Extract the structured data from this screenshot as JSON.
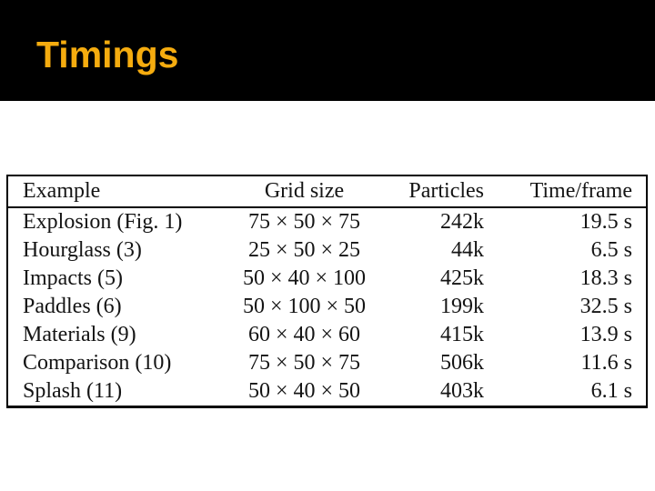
{
  "slide": {
    "title": "Timings"
  },
  "colors": {
    "title": "#F5AC0F",
    "header_bg": "#000000",
    "body_bg": "#FFFFFF",
    "table_border": "#000000",
    "table_text": "#141414"
  },
  "table": {
    "headers": [
      "Example",
      "Grid size",
      "Particles",
      "Time/frame"
    ],
    "rows": [
      [
        "Explosion (Fig. 1)",
        "75 × 50 × 75",
        "242k",
        "19.5 s"
      ],
      [
        "Hourglass (3)",
        "25 × 50 × 25",
        "44k",
        "6.5 s"
      ],
      [
        "Impacts (5)",
        "50 × 40 × 100",
        "425k",
        "18.3 s"
      ],
      [
        "Paddles (6)",
        "50 × 100 × 50",
        "199k",
        "32.5 s"
      ],
      [
        "Materials (9)",
        "60 × 40 × 60",
        "415k",
        "13.9 s"
      ],
      [
        "Comparison (10)",
        "75 × 50 × 75",
        "506k",
        "11.6 s"
      ],
      [
        "Splash (11)",
        "50 × 40 × 50",
        "403k",
        "6.1 s"
      ]
    ]
  }
}
